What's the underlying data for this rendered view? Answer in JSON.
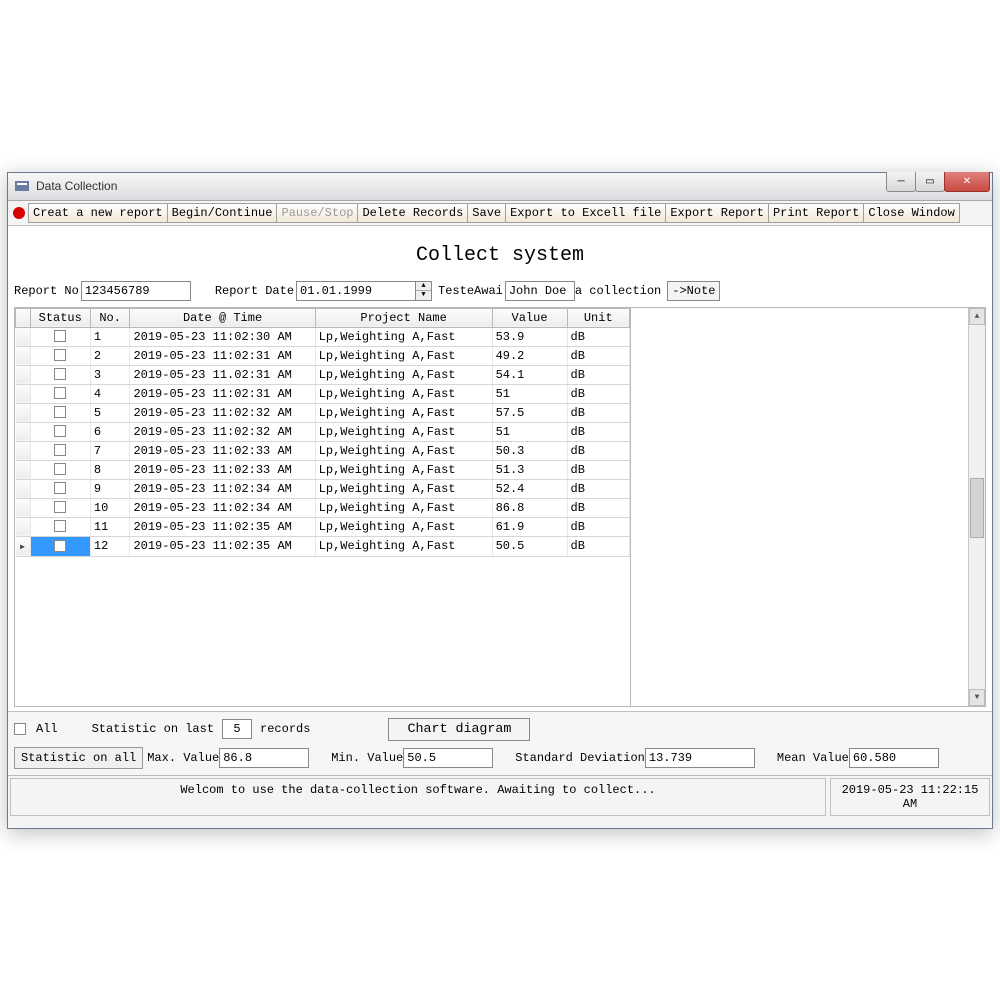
{
  "window": {
    "title": "Data Collection"
  },
  "toolbar": {
    "create": "Creat a new report",
    "begin": "Begin/Continue",
    "pause": "Pause/Stop",
    "delete": "Delete Records",
    "save": "Save",
    "export_excel": "Export to Excell file",
    "export_report": "Export Report",
    "print": "Print Report",
    "close": "Close Window"
  },
  "page_title": "Collect system",
  "form": {
    "report_no_label": "Report No",
    "report_no_value": "123456789",
    "report_date_label": "Report Date",
    "report_date_value": "01.01.1999",
    "tester_label": "TesteAwai",
    "tester_value": "John Doe",
    "collection_label": "a collection",
    "note_btn": "->Note"
  },
  "grid": {
    "columns": [
      "Status",
      "No.",
      "Date @ Time",
      "Project Name",
      "Value",
      "Unit"
    ],
    "rows": [
      {
        "no": "1",
        "dt": "2019-05-23 11:02:30 AM",
        "proj": "Lp,Weighting A,Fast",
        "val": "53.9",
        "unit": "dB",
        "sel": false
      },
      {
        "no": "2",
        "dt": "2019-05-23 11:02:31 AM",
        "proj": "Lp,Weighting A,Fast",
        "val": "49.2",
        "unit": "dB",
        "sel": false
      },
      {
        "no": "3",
        "dt": "2019-05-23 11.02:31 AM",
        "proj": "Lp,Weighting A,Fast",
        "val": "54.1",
        "unit": "dB",
        "sel": false
      },
      {
        "no": "4",
        "dt": "2019-05-23 11:02:31 AM",
        "proj": "Lp,Weighting A,Fast",
        "val": "51",
        "unit": "dB",
        "sel": false
      },
      {
        "no": "5",
        "dt": "2019-05-23 11:02:32 AM",
        "proj": "Lp,Weighting A,Fast",
        "val": "57.5",
        "unit": "dB",
        "sel": false
      },
      {
        "no": "6",
        "dt": "2019-05-23 11:02:32 AM",
        "proj": "Lp,Weighting A,Fast",
        "val": "51",
        "unit": "dB",
        "sel": false
      },
      {
        "no": "7",
        "dt": "2019-05-23 11:02:33 AM",
        "proj": "Lp,Weighting A,Fast",
        "val": "50.3",
        "unit": "dB",
        "sel": false
      },
      {
        "no": "8",
        "dt": "2019-05-23 11:02:33 AM",
        "proj": "Lp,Weighting A,Fast",
        "val": "51.3",
        "unit": "dB",
        "sel": false
      },
      {
        "no": "9",
        "dt": "2019-05-23 11:02:34 AM",
        "proj": "Lp,Weighting A,Fast",
        "val": "52.4",
        "unit": "dB",
        "sel": false
      },
      {
        "no": "10",
        "dt": "2019-05-23 11:02:34 AM",
        "proj": "Lp,Weighting A,Fast",
        "val": "86.8",
        "unit": "dB",
        "sel": false
      },
      {
        "no": "11",
        "dt": "2019-05-23 11:02:35 AM",
        "proj": "Lp,Weighting A,Fast",
        "val": "61.9",
        "unit": "dB",
        "sel": false
      },
      {
        "no": "12",
        "dt": "2019-05-23 11:02:35 AM",
        "proj": "Lp,Weighting A,Fast",
        "val": "50.5",
        "unit": "dB",
        "sel": true
      }
    ]
  },
  "stats": {
    "all_label": "All",
    "stat_last_label": "Statistic on last",
    "records_label": "records",
    "records_count": "5",
    "chart_btn": "Chart diagram",
    "stat_all_label": "Statistic on all",
    "max_label": "Max. Value",
    "max_value": "86.8",
    "min_label": "Min. Value",
    "min_value": "50.5",
    "sd_label": "Standard Deviation",
    "sd_value": "13.739",
    "mean_label": "Mean Value",
    "mean_value": "60.580"
  },
  "statusbar": {
    "message": "Welcom to use the data-collection software. Awaiting to collect...",
    "time": "2019-05-23 11:22:15 AM"
  },
  "colors": {
    "selection": "#3399ff",
    "record_dot": "#d60000",
    "close_btn": "#c84a40"
  }
}
